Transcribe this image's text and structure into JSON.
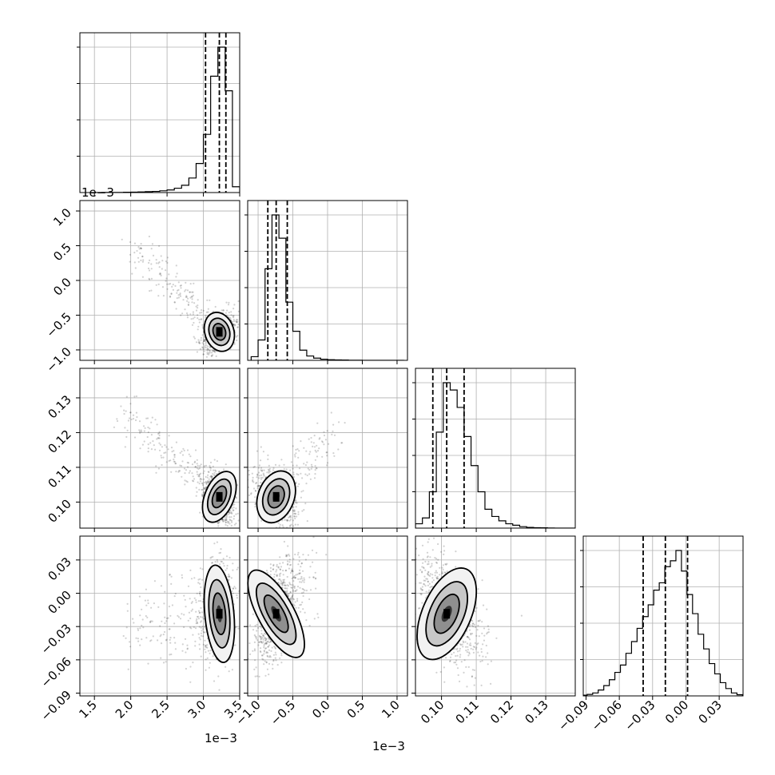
{
  "chart_data": {
    "type": "corner",
    "grid": true,
    "parameters": [
      {
        "ticks": [
          "1.5",
          "2.0",
          "2.5",
          "3.0",
          "3.5"
        ],
        "tick_values": [
          1.5,
          2.0,
          2.5,
          3.0,
          3.5
        ],
        "range": [
          1.3,
          3.5
        ],
        "offset_label": "1e−3",
        "quantiles": [
          3.03,
          3.22,
          3.31
        ],
        "color": "#000000"
      },
      {
        "ticks": [
          "−1.0",
          "−0.5",
          "0.0",
          "0.5",
          "1.0"
        ],
        "tick_values": [
          -1.0,
          -0.5,
          0.0,
          0.5,
          1.0
        ],
        "range": [
          -1.15,
          1.15
        ],
        "offset_label": "1e−3",
        "quantiles": [
          -0.86,
          -0.74,
          -0.58
        ],
        "color": "#000000"
      },
      {
        "ticks": [
          "0.10",
          "0.11",
          "0.12",
          "0.13"
        ],
        "tick_values": [
          0.1,
          0.11,
          0.12,
          0.13
        ],
        "range": [
          0.0925,
          0.1385
        ],
        "offset_label": "",
        "quantiles": [
          0.0975,
          0.1015,
          0.1065
        ],
        "color": "#000000"
      },
      {
        "ticks": [
          "−0.09",
          "−0.06",
          "−0.03",
          "0.00",
          "0.03"
        ],
        "tick_values": [
          -0.09,
          -0.06,
          -0.03,
          0.0,
          0.03
        ],
        "range": [
          -0.0925,
          0.0515
        ],
        "offset_label": "",
        "quantiles": [
          -0.0385,
          -0.0185,
          0.0015
        ],
        "color": "#000000"
      }
    ],
    "histograms": [
      {
        "param": 0,
        "bin_centers": [
          1.55,
          1.65,
          1.75,
          1.85,
          1.95,
          2.05,
          2.15,
          2.25,
          2.35,
          2.45,
          2.55,
          2.65,
          2.75,
          2.85,
          2.95,
          3.05,
          3.15,
          3.25,
          3.35,
          3.45
        ],
        "counts": [
          0,
          1,
          1,
          1,
          2,
          3,
          4,
          6,
          8,
          12,
          18,
          30,
          50,
          100,
          200,
          400,
          800,
          1000,
          700,
          40
        ]
      },
      {
        "param": 1,
        "bin_centers": [
          -1.05,
          -0.95,
          -0.85,
          -0.75,
          -0.65,
          -0.55,
          -0.45,
          -0.35,
          -0.25,
          -0.15,
          -0.05,
          0.05,
          0.15,
          0.25,
          0.35,
          0.45,
          0.55,
          0.65,
          0.75,
          0.85,
          0.95,
          1.05
        ],
        "counts": [
          25,
          140,
          630,
          1000,
          840,
          400,
          200,
          70,
          30,
          15,
          8,
          4,
          3,
          2,
          1,
          1,
          0,
          0,
          0,
          0,
          0,
          0
        ]
      },
      {
        "param": 2,
        "bin_centers": [
          0.0935,
          0.0955,
          0.0975,
          0.0995,
          0.1015,
          0.1035,
          0.1055,
          0.1075,
          0.1095,
          0.1115,
          0.1135,
          0.1155,
          0.1175,
          0.1195,
          0.1215,
          0.1235,
          0.1255,
          0.1275,
          0.1295,
          0.1315,
          0.1335,
          0.1355,
          0.1375
        ],
        "counts": [
          30,
          70,
          250,
          660,
          1000,
          950,
          830,
          630,
          430,
          250,
          130,
          80,
          50,
          30,
          20,
          10,
          5,
          3,
          2,
          1,
          0,
          0,
          0
        ]
      },
      {
        "param": 3,
        "bin_centers": [
          -0.0915,
          -0.0865,
          -0.0815,
          -0.0765,
          -0.0715,
          -0.0665,
          -0.0615,
          -0.0565,
          -0.0515,
          -0.0465,
          -0.0415,
          -0.0365,
          -0.0315,
          -0.0265,
          -0.0215,
          -0.0165,
          -0.0115,
          -0.0065,
          -0.0015,
          0.0035,
          0.0085,
          0.0135,
          0.0185,
          0.0235,
          0.0285,
          0.0335,
          0.0385,
          0.0435,
          0.0485
        ],
        "counts": [
          5,
          10,
          20,
          40,
          70,
          110,
          160,
          210,
          290,
          370,
          460,
          540,
          620,
          720,
          770,
          880,
          920,
          990,
          850,
          690,
          560,
          420,
          320,
          220,
          150,
          90,
          50,
          20,
          8
        ]
      }
    ],
    "pairs": [
      {
        "x_param": 0,
        "y_param": 1,
        "mean": [
          3.22,
          -0.74
        ],
        "sd": [
          0.1,
          0.13
        ],
        "corr": 0.45,
        "tail": [
          2.0,
          0.5
        ],
        "tail_fraction": 0.28
      },
      {
        "x_param": 0,
        "y_param": 2,
        "mean": [
          3.22,
          0.1015
        ],
        "sd": [
          0.1,
          0.0035
        ],
        "corr": -0.45,
        "tail": [
          1.9,
          0.125
        ],
        "tail_fraction": 0.28
      },
      {
        "x_param": 0,
        "y_param": 3,
        "mean": [
          3.22,
          -0.0185
        ],
        "sd": [
          0.1,
          0.02
        ],
        "corr": 0.05,
        "tail": [
          2.0,
          -0.03
        ],
        "tail_fraction": 0.28
      },
      {
        "x_param": 1,
        "y_param": 2,
        "mean": [
          -0.74,
          0.1015
        ],
        "sd": [
          0.13,
          0.0035
        ],
        "corr": -0.5,
        "tail": [
          0.1,
          0.12
        ],
        "tail_fraction": 0.22
      },
      {
        "x_param": 1,
        "y_param": 3,
        "mean": [
          -0.74,
          -0.0185
        ],
        "sd": [
          0.13,
          0.02
        ],
        "corr": 0.45,
        "tail": [
          -0.2,
          0.02
        ],
        "tail_fraction": 0.15
      },
      {
        "x_param": 2,
        "y_param": 3,
        "mean": [
          0.1015,
          -0.0185
        ],
        "sd": [
          0.0035,
          0.02
        ],
        "corr": -0.45,
        "tail": [
          0.115,
          -0.04
        ],
        "tail_fraction": 0.1
      }
    ]
  }
}
